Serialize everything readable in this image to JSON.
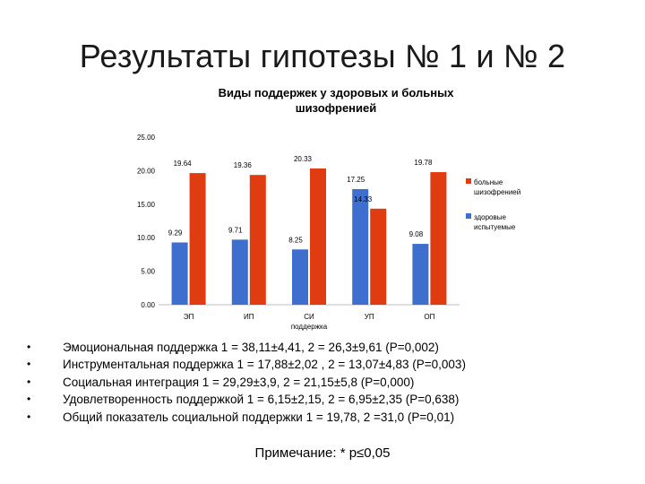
{
  "slide": {
    "title": "Результаты гипотезы № 1 и № 2",
    "bullets": [
      "Эмоциональная поддержка 1 = 38,11±4,41, 2 = 26,3±9,61 (Р=0,002)",
      "Инструментальная поддержка 1 = 17,88±2,02 , 2 = 13,07±4,83 (Р=0,003)",
      "Социальная интеграция 1 = 29,29±3,9, 2 = 21,15±5,8 (Р=0,000)",
      "Удовлетворенность поддержкой 1 = 6,15±2,15, 2 = 6,95±2,35 (Р=0,638)",
      "Общий показатель социальной поддержки 1 = 19,78, 2 =31,0 (Р=0,01)"
    ],
    "bullet_glyph": "•",
    "note": "Примечание: * р≤0,05"
  },
  "chart_data": {
    "type": "bar",
    "title": "Виды поддержек у здоровых и больных шизофренией",
    "title_lines": [
      "Виды поддержек у здоровых и больных",
      "шизофренией"
    ],
    "categories": [
      "ЭП",
      "ИП",
      "СИ",
      "УП",
      "ОП"
    ],
    "category_lines": [
      [
        "ЭП"
      ],
      [
        "ИП"
      ],
      [
        "СИ",
        "поддержка"
      ],
      [
        "УП"
      ],
      [
        "ОП"
      ]
    ],
    "series": [
      {
        "name": "здоровые испытуемые",
        "name_lines": [
          "здоровые",
          "испытуемые"
        ],
        "color": "#3f6fce",
        "values": [
          9.29,
          9.71,
          8.25,
          17.25,
          9.08
        ],
        "labels": [
          "9.29",
          "9.71",
          "8.25",
          "17.25",
          "9.08"
        ]
      },
      {
        "name": "больные шизофренией",
        "name_lines": [
          "больные",
          "шизофренией"
        ],
        "color": "#e03c12",
        "values": [
          19.64,
          19.36,
          20.33,
          14.33,
          19.78
        ],
        "labels": [
          "19.64",
          "19.36",
          "20.33",
          "14.33",
          "19.78"
        ]
      }
    ],
    "legend_order": [
      1,
      0
    ],
    "ylim": [
      0,
      25
    ],
    "yticks": [
      0,
      5,
      10,
      15,
      20,
      25
    ],
    "ytick_labels": [
      "0.00",
      "5.00",
      "10.00",
      "15.00",
      "20.00",
      "25.00"
    ],
    "grid": false,
    "legend_position": "right"
  }
}
